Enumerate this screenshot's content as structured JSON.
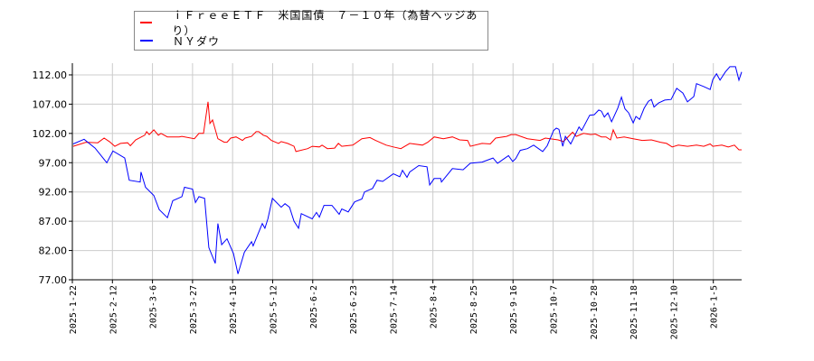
{
  "chart_data": {
    "type": "line",
    "title": "",
    "xlabel": "",
    "ylabel": "",
    "x_units": "trading days since 2025-1-22",
    "xlim": [
      0,
      250.6
    ],
    "ylim": [
      77,
      114
    ],
    "grid": true,
    "legend_placement": "top-left",
    "y_ticks": [
      77,
      82,
      87,
      92,
      97,
      102,
      107,
      112
    ],
    "y_tick_labels": [
      "77.00",
      "82.00",
      "87.00",
      "92.00",
      "97.00",
      "102.00",
      "107.00",
      "112.00"
    ],
    "x_ticks": [
      0,
      15,
      30,
      45,
      60,
      75,
      90,
      105,
      120,
      135,
      150,
      165,
      180,
      195,
      210,
      225,
      240
    ],
    "x_tick_labels": [
      "2025-1-22",
      "2025-2-12",
      "2025-3-6",
      "2025-3-27",
      "2025-4-16",
      "2025-5-12",
      "2025-6-2",
      "2025-6-23",
      "2025-7-14",
      "2025-8-4",
      "2025-8-25",
      "2025-9-16",
      "2025-10-7",
      "2025-10-28",
      "2025-11-18",
      "2025-12-10",
      "2026-1-5"
    ],
    "series": [
      {
        "name": "ｉＦｒｅｅＥＴＦ　米国国債　７－１０年（為替ヘッジあり）",
        "color": "#ff0000",
        "x": [
          0.3,
          5.1,
          9.5,
          11.9,
          13.9,
          15.9,
          18,
          20.7,
          21.7,
          23.7,
          27.1,
          27.8,
          28.8,
          30.5,
          32.2,
          33.2,
          35.6,
          40,
          41,
          45.7,
          47.4,
          49.1,
          50.8,
          51.5,
          52.5,
          54.5,
          56.9,
          57.9,
          59.3,
          61.3,
          63.7,
          64.7,
          67.1,
          68.8,
          69.8,
          71.5,
          72.8,
          74.5,
          77.2,
          78.2,
          80.6,
          83,
          83.7,
          88.1,
          89.8,
          92.5,
          93.5,
          95.5,
          98.2,
          99.6,
          100.9,
          105,
          108.4,
          111.4,
          113.5,
          117.5,
          120.2,
          123,
          126.3,
          131.1,
          133.1,
          135.5,
          138.9,
          142.3,
          145,
          148,
          149,
          153.4,
          156.5,
          158.5,
          162.6,
          164.3,
          166,
          170.4,
          175.1,
          177.1,
          181.9,
          183.9,
          187.3,
          188.7,
          191.4,
          194.1,
          195.8,
          198.1,
          199.8,
          201.5,
          202.5,
          203.9,
          206.6,
          210,
          213.4,
          216.8,
          220.2,
          222.5,
          224.6,
          226.9,
          230.3,
          233.7,
          236.4,
          238.8,
          239.8,
          243.2,
          245.6,
          247.9,
          249.6,
          250.6
        ],
        "y": [
          99.8,
          100.5,
          100.4,
          101.2,
          100.6,
          99.8,
          100.3,
          100.4,
          99.9,
          100.9,
          101.7,
          102.3,
          101.8,
          102.6,
          101.7,
          102,
          101.4,
          101.4,
          101.5,
          101.1,
          102,
          102,
          107.4,
          103.7,
          104.3,
          101.1,
          100.5,
          100.5,
          101.2,
          101.4,
          100.8,
          101.2,
          101.5,
          102.3,
          102.3,
          101.7,
          101.5,
          100.8,
          100.3,
          100.6,
          100.3,
          99.8,
          98.9,
          99.4,
          99.8,
          99.7,
          100,
          99.4,
          99.5,
          100.3,
          99.8,
          100,
          101.1,
          101.3,
          100.8,
          100,
          99.7,
          99.4,
          100.3,
          100,
          100.5,
          101.4,
          101.1,
          101.4,
          100.9,
          100.8,
          99.8,
          100.3,
          100.2,
          101.2,
          101.5,
          101.8,
          101.8,
          101.1,
          100.8,
          101.2,
          100.9,
          100.6,
          102.2,
          101.5,
          102,
          101.8,
          101.9,
          101.4,
          101.4,
          100.9,
          102.6,
          101.2,
          101.4,
          101.1,
          100.8,
          100.9,
          100.5,
          100.3,
          99.7,
          100,
          99.8,
          100,
          99.8,
          100.2,
          99.8,
          100,
          99.7,
          100,
          99.2,
          99.2
        ]
      },
      {
        "name": "ＮＹダウ",
        "color": "#0000ff",
        "x": [
          0.3,
          4.4,
          8.5,
          12.9,
          15.2,
          19.6,
          21.3,
          25.4,
          25.7,
          27.4,
          30.5,
          32.5,
          35.6,
          37.6,
          41,
          42,
          45,
          46.1,
          47.4,
          49.5,
          51.1,
          53.5,
          54.5,
          55.9,
          57.9,
          60.3,
          62,
          64.4,
          67.1,
          67.7,
          71.1,
          72.1,
          73.2,
          74.9,
          78.2,
          79.6,
          81.3,
          83,
          84.7,
          85.7,
          89.8,
          91.4,
          92.5,
          94.2,
          97.2,
          99.9,
          100.9,
          103.3,
          105.7,
          108.4,
          109.4,
          112.4,
          114.1,
          116.2,
          120.2,
          122.6,
          123.6,
          125.3,
          126.3,
          129.7,
          132.8,
          133.8,
          135.5,
          137.9,
          138.2,
          142.3,
          146.3,
          149,
          153.4,
          157.5,
          159.2,
          163.3,
          164.9,
          166,
          167.7,
          170.4,
          172.7,
          176.1,
          177.8,
          180.2,
          181.2,
          182.2,
          183.6,
          184.6,
          186.6,
          189.7,
          190.7,
          193.7,
          195.4,
          197.1,
          198.1,
          199.2,
          200.5,
          201.9,
          204.2,
          205.6,
          206.9,
          208.3,
          210,
          211,
          212.4,
          214.1,
          215.7,
          216.8,
          217.8,
          219.5,
          221.8,
          224.2,
          226.3,
          228.6,
          230.3,
          232.7,
          233.7,
          236.4,
          238.8,
          239.8,
          241.2,
          242.5,
          244.5,
          246.2,
          248.3,
          249.6,
          250.6
        ],
        "y": [
          100.2,
          101,
          99.5,
          97,
          99,
          97.8,
          94,
          93.7,
          95.4,
          92.8,
          91.4,
          89,
          87.6,
          90.5,
          91.2,
          92.8,
          92.5,
          90.2,
          91.2,
          90.9,
          82.5,
          79.8,
          86.6,
          83,
          84,
          81.5,
          78,
          81.7,
          83.5,
          82.8,
          86.6,
          85.8,
          87.4,
          90.9,
          89.4,
          90,
          89.4,
          87,
          85.8,
          88.3,
          87.4,
          88.5,
          87.7,
          89.7,
          89.7,
          88.2,
          89.1,
          88.6,
          90.3,
          90.8,
          92,
          92.6,
          94,
          93.8,
          95.1,
          94.6,
          95.7,
          94.5,
          95.4,
          96.5,
          96.3,
          93.2,
          94.3,
          94.3,
          93.7,
          96,
          95.8,
          96.9,
          97.1,
          97.8,
          96.9,
          98.2,
          97.2,
          97.7,
          99.1,
          99.4,
          100,
          98.9,
          99.9,
          102.5,
          102.9,
          102.7,
          99.8,
          101.5,
          100.2,
          103.1,
          102.5,
          105.1,
          105.2,
          106,
          105.8,
          104.8,
          105.5,
          104,
          106.3,
          108.2,
          106.2,
          105.5,
          103.8,
          104.9,
          104.4,
          106.3,
          107.5,
          107.8,
          106.5,
          107.2,
          107.7,
          107.8,
          109.7,
          108.9,
          107.4,
          108.3,
          110.5,
          110,
          109.5,
          111.2,
          112.2,
          111.1,
          112.5,
          113.4,
          113.4,
          111.1,
          112.5
        ]
      }
    ]
  }
}
